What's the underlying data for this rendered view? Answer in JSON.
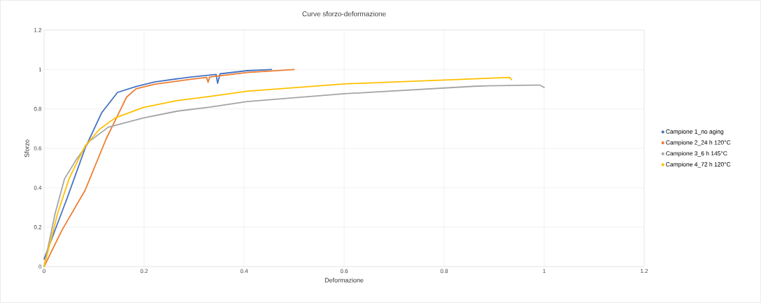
{
  "chart_data": {
    "type": "line",
    "title": "Curve sforzo-deformazione",
    "xlabel": "Deformazione",
    "ylabel": "Sforzo",
    "xlim": [
      0,
      1.2
    ],
    "xticks": [
      0,
      0.2,
      0.4,
      0.6,
      0.8,
      1,
      1.2
    ],
    "ylim": [
      0,
      1.2
    ],
    "yticks": [
      0,
      0.2,
      0.4,
      0.6,
      0.8,
      1,
      1.2
    ],
    "grid": true,
    "legend": "right",
    "series": [
      {
        "name": "Campione 1_no aging",
        "color": "#4472c4",
        "x": [
          0,
          0.045,
          0.082,
          0.115,
          0.147,
          0.184,
          0.221,
          0.29,
          0.344,
          0.347,
          0.352,
          0.406,
          0.455
        ],
        "values": [
          0.038,
          0.34,
          0.6,
          0.78,
          0.884,
          0.914,
          0.937,
          0.961,
          0.975,
          0.93,
          0.978,
          0.994,
          1.0
        ]
      },
      {
        "name": "Campione 2_24 h 120°C",
        "color": "#ed7d31",
        "x": [
          0,
          0.036,
          0.082,
          0.124,
          0.147,
          0.165,
          0.184,
          0.221,
          0.29,
          0.325,
          0.328,
          0.331,
          0.406,
          0.5
        ],
        "values": [
          0,
          0.186,
          0.387,
          0.647,
          0.766,
          0.86,
          0.902,
          0.925,
          0.949,
          0.96,
          0.935,
          0.962,
          0.985,
          1.0
        ]
      },
      {
        "name": "Campione 3_6 h 145°C",
        "color": "#a5a5a5",
        "x": [
          0,
          0.022,
          0.041,
          0.064,
          0.091,
          0.128,
          0.198,
          0.267,
          0.331,
          0.406,
          0.601,
          0.861,
          0.889,
          0.991,
          1.0
        ],
        "values": [
          0,
          0.269,
          0.446,
          0.541,
          0.636,
          0.707,
          0.754,
          0.789,
          0.809,
          0.837,
          0.877,
          0.915,
          0.917,
          0.921,
          0.909
        ]
      },
      {
        "name": "Campione 4_72 h 120°C",
        "color": "#ffc000",
        "x": [
          0,
          0.027,
          0.05,
          0.082,
          0.11,
          0.142,
          0.198,
          0.267,
          0.336,
          0.406,
          0.601,
          0.861,
          0.931,
          0.935
        ],
        "values": [
          0,
          0.269,
          0.446,
          0.612,
          0.695,
          0.754,
          0.807,
          0.843,
          0.865,
          0.89,
          0.927,
          0.953,
          0.96,
          0.948
        ]
      }
    ]
  }
}
